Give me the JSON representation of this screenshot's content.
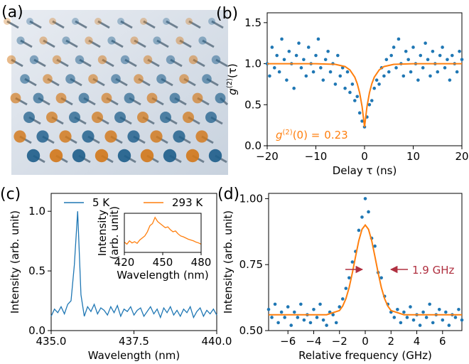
{
  "chart_data": [
    {
      "type": "image",
      "label": "(a)"
    },
    {
      "type": "scatter",
      "label": "(b)",
      "xlabel": "Delay τ (ns)",
      "ylabel": {
        "symbol": "g",
        "superscript": "(2)",
        "argument": "(τ)"
      },
      "annotation": {
        "symbol": "g",
        "superscript": "(2)",
        "argument": "(0) =",
        "value": "0.23"
      },
      "xlim": [
        -20,
        20
      ],
      "ylim": [
        0,
        1.62
      ],
      "xticks": [
        {
          "value": -20,
          "label": "−20"
        },
        {
          "value": -10,
          "label": "−10"
        },
        0,
        10,
        20
      ],
      "yticks": [
        {
          "value": 0,
          "label": "0.0"
        },
        0.5,
        {
          "value": 1,
          "label": "1.0"
        },
        1.5
      ],
      "points": {
        "color": "#1f77b4",
        "x": [
          -20,
          -19.5,
          -19,
          -18.5,
          -18,
          -17.5,
          -17,
          -16.5,
          -16,
          -15.5,
          -15,
          -14.5,
          -14,
          -13.5,
          -13,
          -12.5,
          -12,
          -11.5,
          -11,
          -10.5,
          -10,
          -9.5,
          -9,
          -8.5,
          -8,
          -7.5,
          -7,
          -6.5,
          -6,
          -5.5,
          -5,
          -4.5,
          -4,
          -3.5,
          -3,
          -2.5,
          -2,
          -1.5,
          -1,
          -0.5,
          0,
          0.5,
          1,
          1.5,
          2,
          2.5,
          3,
          3.5,
          4,
          4.5,
          5,
          5.5,
          6,
          6.5,
          7,
          7.5,
          8,
          8.5,
          9,
          9.5,
          10,
          10.5,
          11,
          11.5,
          12,
          12.5,
          13,
          13.5,
          14,
          14.5,
          15,
          15.5,
          16,
          16.5,
          17,
          17.5,
          18,
          18.5,
          19,
          19.5,
          20
        ],
        "y": [
          1.0,
          0.85,
          1.2,
          0.95,
          1.1,
          0.9,
          1.3,
          1.05,
          0.8,
          1.15,
          1.0,
          0.7,
          1.1,
          1.25,
          0.95,
          1.05,
          0.85,
          1.2,
          1.0,
          0.9,
          1.1,
          1.3,
          0.95,
          0.8,
          1.05,
          1.15,
          0.9,
          1.0,
          0.75,
          1.1,
          0.85,
          0.95,
          0.7,
          0.9,
          0.65,
          0.75,
          0.55,
          0.6,
          0.4,
          0.3,
          0.23,
          0.35,
          0.5,
          0.55,
          0.7,
          0.8,
          0.75,
          0.95,
          0.85,
          1.05,
          0.9,
          1.1,
          1.2,
          0.95,
          1.3,
          1.0,
          0.85,
          1.15,
          1.05,
          0.9,
          1.2,
          1.0,
          0.8,
          1.1,
          0.95,
          1.25,
          1.05,
          0.85,
          1.15,
          1.0,
          0.9,
          1.1,
          1.2,
          0.95,
          1.05,
          0.8,
          1.1,
          1.0,
          0.9,
          1.15,
          1.05
        ]
      },
      "fit": {
        "color": "#ff7f0e",
        "x": [
          -20,
          -10,
          -6,
          -4,
          -3,
          -2,
          -1.5,
          -1,
          -0.5,
          0,
          0.5,
          1,
          1.5,
          2,
          3,
          4,
          6,
          10,
          20
        ],
        "y": [
          1.0,
          1.0,
          0.992,
          0.965,
          0.923,
          0.835,
          0.757,
          0.643,
          0.476,
          0.23,
          0.476,
          0.643,
          0.757,
          0.835,
          0.923,
          0.965,
          0.992,
          1.0,
          1.0
        ]
      }
    },
    {
      "type": "line",
      "label": "(c)",
      "xlabel": "Wavelength (nm)",
      "ylabel": "Intensity (arb. unit)",
      "xlim": [
        435,
        440
      ],
      "ylim": [
        0,
        1.15
      ],
      "xticks": [
        {
          "value": 435,
          "label": "435.0"
        },
        437.5,
        {
          "value": 440,
          "label": "440.0"
        }
      ],
      "yticks": [
        {
          "value": 0,
          "label": "0.0"
        },
        0.5,
        {
          "value": 1,
          "label": "1.0"
        }
      ],
      "series": [
        {
          "name": "5 K",
          "color": "#1f77b4",
          "x": [
            435.0,
            435.1,
            435.2,
            435.3,
            435.4,
            435.5,
            435.6,
            435.7,
            435.8,
            435.9,
            436.0,
            436.1,
            436.2,
            436.3,
            436.4,
            436.5,
            436.6,
            436.7,
            436.8,
            436.9,
            437.0,
            437.1,
            437.2,
            437.3,
            437.4,
            437.5,
            437.6,
            437.7,
            437.8,
            437.9,
            438.0,
            438.1,
            438.2,
            438.3,
            438.4,
            438.5,
            438.6,
            438.7,
            438.8,
            438.9,
            439.0,
            439.1,
            439.2,
            439.3,
            439.4,
            439.5,
            439.6,
            439.7,
            439.8,
            439.9,
            440.0
          ],
          "values": [
            0.12,
            0.18,
            0.15,
            0.2,
            0.14,
            0.22,
            0.25,
            0.55,
            1.0,
            0.3,
            0.12,
            0.2,
            0.16,
            0.22,
            0.14,
            0.19,
            0.17,
            0.13,
            0.2,
            0.15,
            0.21,
            0.12,
            0.18,
            0.16,
            0.2,
            0.13,
            0.17,
            0.19,
            0.12,
            0.16,
            0.2,
            0.14,
            0.18,
            0.11,
            0.19,
            0.15,
            0.2,
            0.13,
            0.17,
            0.12,
            0.18,
            0.15,
            0.2,
            0.11,
            0.16,
            0.19,
            0.12,
            0.17,
            0.14,
            0.18,
            0.13
          ]
        }
      ],
      "inset": {
        "xlabel": "Wavelength (nm)",
        "ylabel": [
          "Intensity",
          "(arb. unit)"
        ],
        "xlim": [
          420,
          480
        ],
        "ylim": [
          0.1,
          1.05
        ],
        "xticks": [
          420,
          450,
          480
        ],
        "series": [
          {
            "name": "293 K",
            "color": "#ff7f0e",
            "x": [
              420,
              422,
              424,
              426,
              428,
              430,
              432,
              434,
              436,
              438,
              440,
              442,
              444,
              446,
              448,
              450,
              452,
              454,
              456,
              458,
              460,
              462,
              464,
              466,
              468,
              470,
              472,
              474,
              476,
              478,
              480
            ],
            "values": [
              0.35,
              0.3,
              0.38,
              0.33,
              0.36,
              0.32,
              0.4,
              0.45,
              0.5,
              0.6,
              0.75,
              0.8,
              0.95,
              0.85,
              0.8,
              0.75,
              0.7,
              0.72,
              0.65,
              0.6,
              0.62,
              0.55,
              0.5,
              0.48,
              0.45,
              0.42,
              0.4,
              0.38,
              0.35,
              0.33,
              0.3
            ]
          }
        ]
      }
    },
    {
      "type": "scatter",
      "label": "(d)",
      "xlabel": "Relative frequency (GHz)",
      "ylabel": "Intensity (arb. unit)",
      "annotation": "1.9 GHz",
      "xlim": [
        -7.5,
        7.5
      ],
      "ylim": [
        0.5,
        1.02
      ],
      "xticks": [
        {
          "value": -6,
          "label": "−6"
        },
        {
          "value": -4,
          "label": "−4"
        },
        {
          "value": -2,
          "label": "−2"
        },
        0,
        2,
        4,
        6
      ],
      "yticks": [
        {
          "value": 0.5,
          "label": "0.50"
        },
        0.75,
        {
          "value": 1,
          "label": "1.00"
        }
      ],
      "points": {
        "color": "#1f77b4",
        "x": [
          -7.5,
          -7.25,
          -7,
          -6.75,
          -6.5,
          -6.25,
          -6,
          -5.75,
          -5.5,
          -5.25,
          -5,
          -4.75,
          -4.5,
          -4.25,
          -4,
          -3.75,
          -3.5,
          -3.25,
          -3,
          -2.75,
          -2.5,
          -2.25,
          -2,
          -1.75,
          -1.5,
          -1.25,
          -1,
          -0.75,
          -0.5,
          -0.25,
          0,
          0.25,
          0.5,
          0.75,
          1,
          1.25,
          1.5,
          1.75,
          2,
          2.25,
          2.5,
          2.75,
          3,
          3.25,
          3.5,
          3.75,
          4,
          4.25,
          4.5,
          4.75,
          5,
          5.25,
          5.5,
          5.75,
          6,
          6.25,
          6.5,
          6.75,
          7,
          7.25,
          7.5
        ],
        "y": [
          0.58,
          0.55,
          0.6,
          0.53,
          0.57,
          0.55,
          0.59,
          0.52,
          0.57,
          0.55,
          0.6,
          0.54,
          0.56,
          0.53,
          0.58,
          0.55,
          0.6,
          0.54,
          0.52,
          0.57,
          0.56,
          0.53,
          0.59,
          0.62,
          0.66,
          0.7,
          0.76,
          0.8,
          0.88,
          0.93,
          1.0,
          0.95,
          0.85,
          0.82,
          0.72,
          0.7,
          0.63,
          0.6,
          0.57,
          0.55,
          0.58,
          0.53,
          0.57,
          0.55,
          0.59,
          0.54,
          0.56,
          0.52,
          0.57,
          0.55,
          0.6,
          0.53,
          0.56,
          0.58,
          0.54,
          0.57,
          0.52,
          0.56,
          0.55,
          0.58,
          0.54
        ]
      },
      "fit": {
        "color": "#ff7f0e",
        "x": [
          -7.5,
          -3,
          -2,
          -1.75,
          -1.5,
          -1.25,
          -1,
          -0.75,
          -0.5,
          -0.25,
          0,
          0.25,
          0.5,
          0.75,
          1,
          1.25,
          1.5,
          1.75,
          2,
          3,
          7.5
        ],
        "y": [
          0.56,
          0.56,
          0.576,
          0.593,
          0.621,
          0.663,
          0.719,
          0.781,
          0.841,
          0.884,
          0.9,
          0.884,
          0.841,
          0.781,
          0.719,
          0.663,
          0.621,
          0.593,
          0.576,
          0.56,
          0.56
        ]
      }
    }
  ]
}
